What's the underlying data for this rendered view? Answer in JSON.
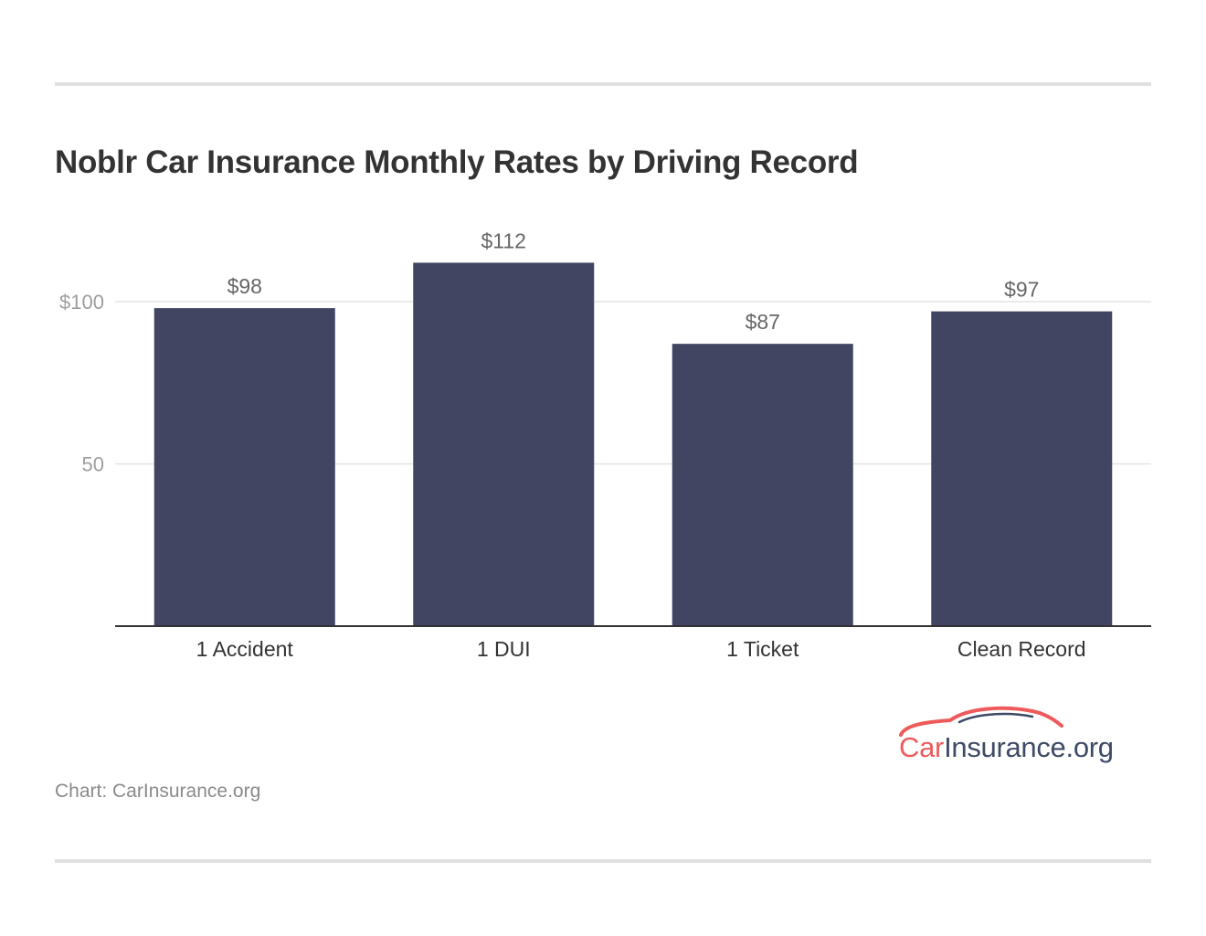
{
  "title": "Noblr Car Insurance Monthly Rates by Driving Record",
  "source": "Chart: CarInsurance.org",
  "logo": {
    "part1": "Car",
    "part2": "Insurance.org"
  },
  "colors": {
    "bar": "#414562",
    "grid": "#e3e3e3",
    "axis": "#333333",
    "logo_red": "#ee5a5a",
    "logo_navy": "#3e4a66"
  },
  "chart_data": {
    "type": "bar",
    "title": "Noblr Car Insurance Monthly Rates by Driving Record",
    "xlabel": "",
    "ylabel": "",
    "categories": [
      "1 Accident",
      "1 DUI",
      "1 Ticket",
      "Clean Record"
    ],
    "values": [
      98,
      112,
      87,
      97
    ],
    "value_labels": [
      "$98",
      "$112",
      "$87",
      "$97"
    ],
    "yticks": [
      50,
      100
    ],
    "ytick_labels": [
      "50",
      "$100"
    ],
    "ylim": [
      0,
      112
    ],
    "grid": true,
    "legend": "none"
  }
}
